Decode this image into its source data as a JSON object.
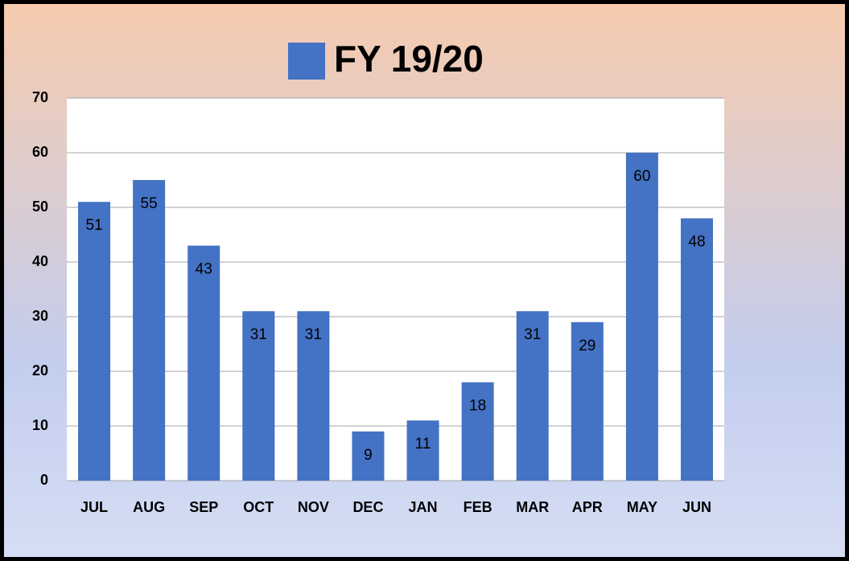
{
  "chart_data": {
    "type": "bar",
    "series": [
      {
        "name": "FY 19/20",
        "color": "#4472c4",
        "values": [
          51,
          55,
          43,
          31,
          31,
          9,
          11,
          18,
          31,
          29,
          60,
          48
        ]
      }
    ],
    "categories": [
      "JUL",
      "AUG",
      "SEP",
      "OCT",
      "NOV",
      "DEC",
      "JAN",
      "FEB",
      "MAR",
      "APR",
      "MAY",
      "JUN"
    ],
    "ylim": [
      0,
      70
    ],
    "yticks": [
      0,
      10,
      20,
      30,
      40,
      50,
      60,
      70
    ],
    "grid": true,
    "legend": "top"
  }
}
